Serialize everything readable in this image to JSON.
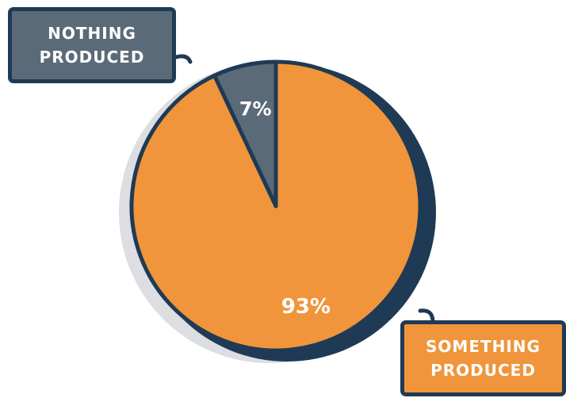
{
  "chart_data": {
    "type": "pie",
    "title": "",
    "slices": [
      {
        "label": "NOTHING PRODUCED",
        "value": 7,
        "display": "7%",
        "color": "#5b6a78"
      },
      {
        "label": "SOMETHING PRODUCED",
        "value": 93,
        "display": "93%",
        "color": "#f0953b"
      }
    ],
    "callouts": [
      {
        "lines": [
          "NOTHING",
          "PRODUCED"
        ],
        "color": "#5b6a78"
      },
      {
        "lines": [
          "SOMETHING",
          "PRODUCED"
        ],
        "color": "#f0953b"
      }
    ],
    "outline_color": "#1f3a55",
    "shadow_color": "#dcdee1"
  }
}
